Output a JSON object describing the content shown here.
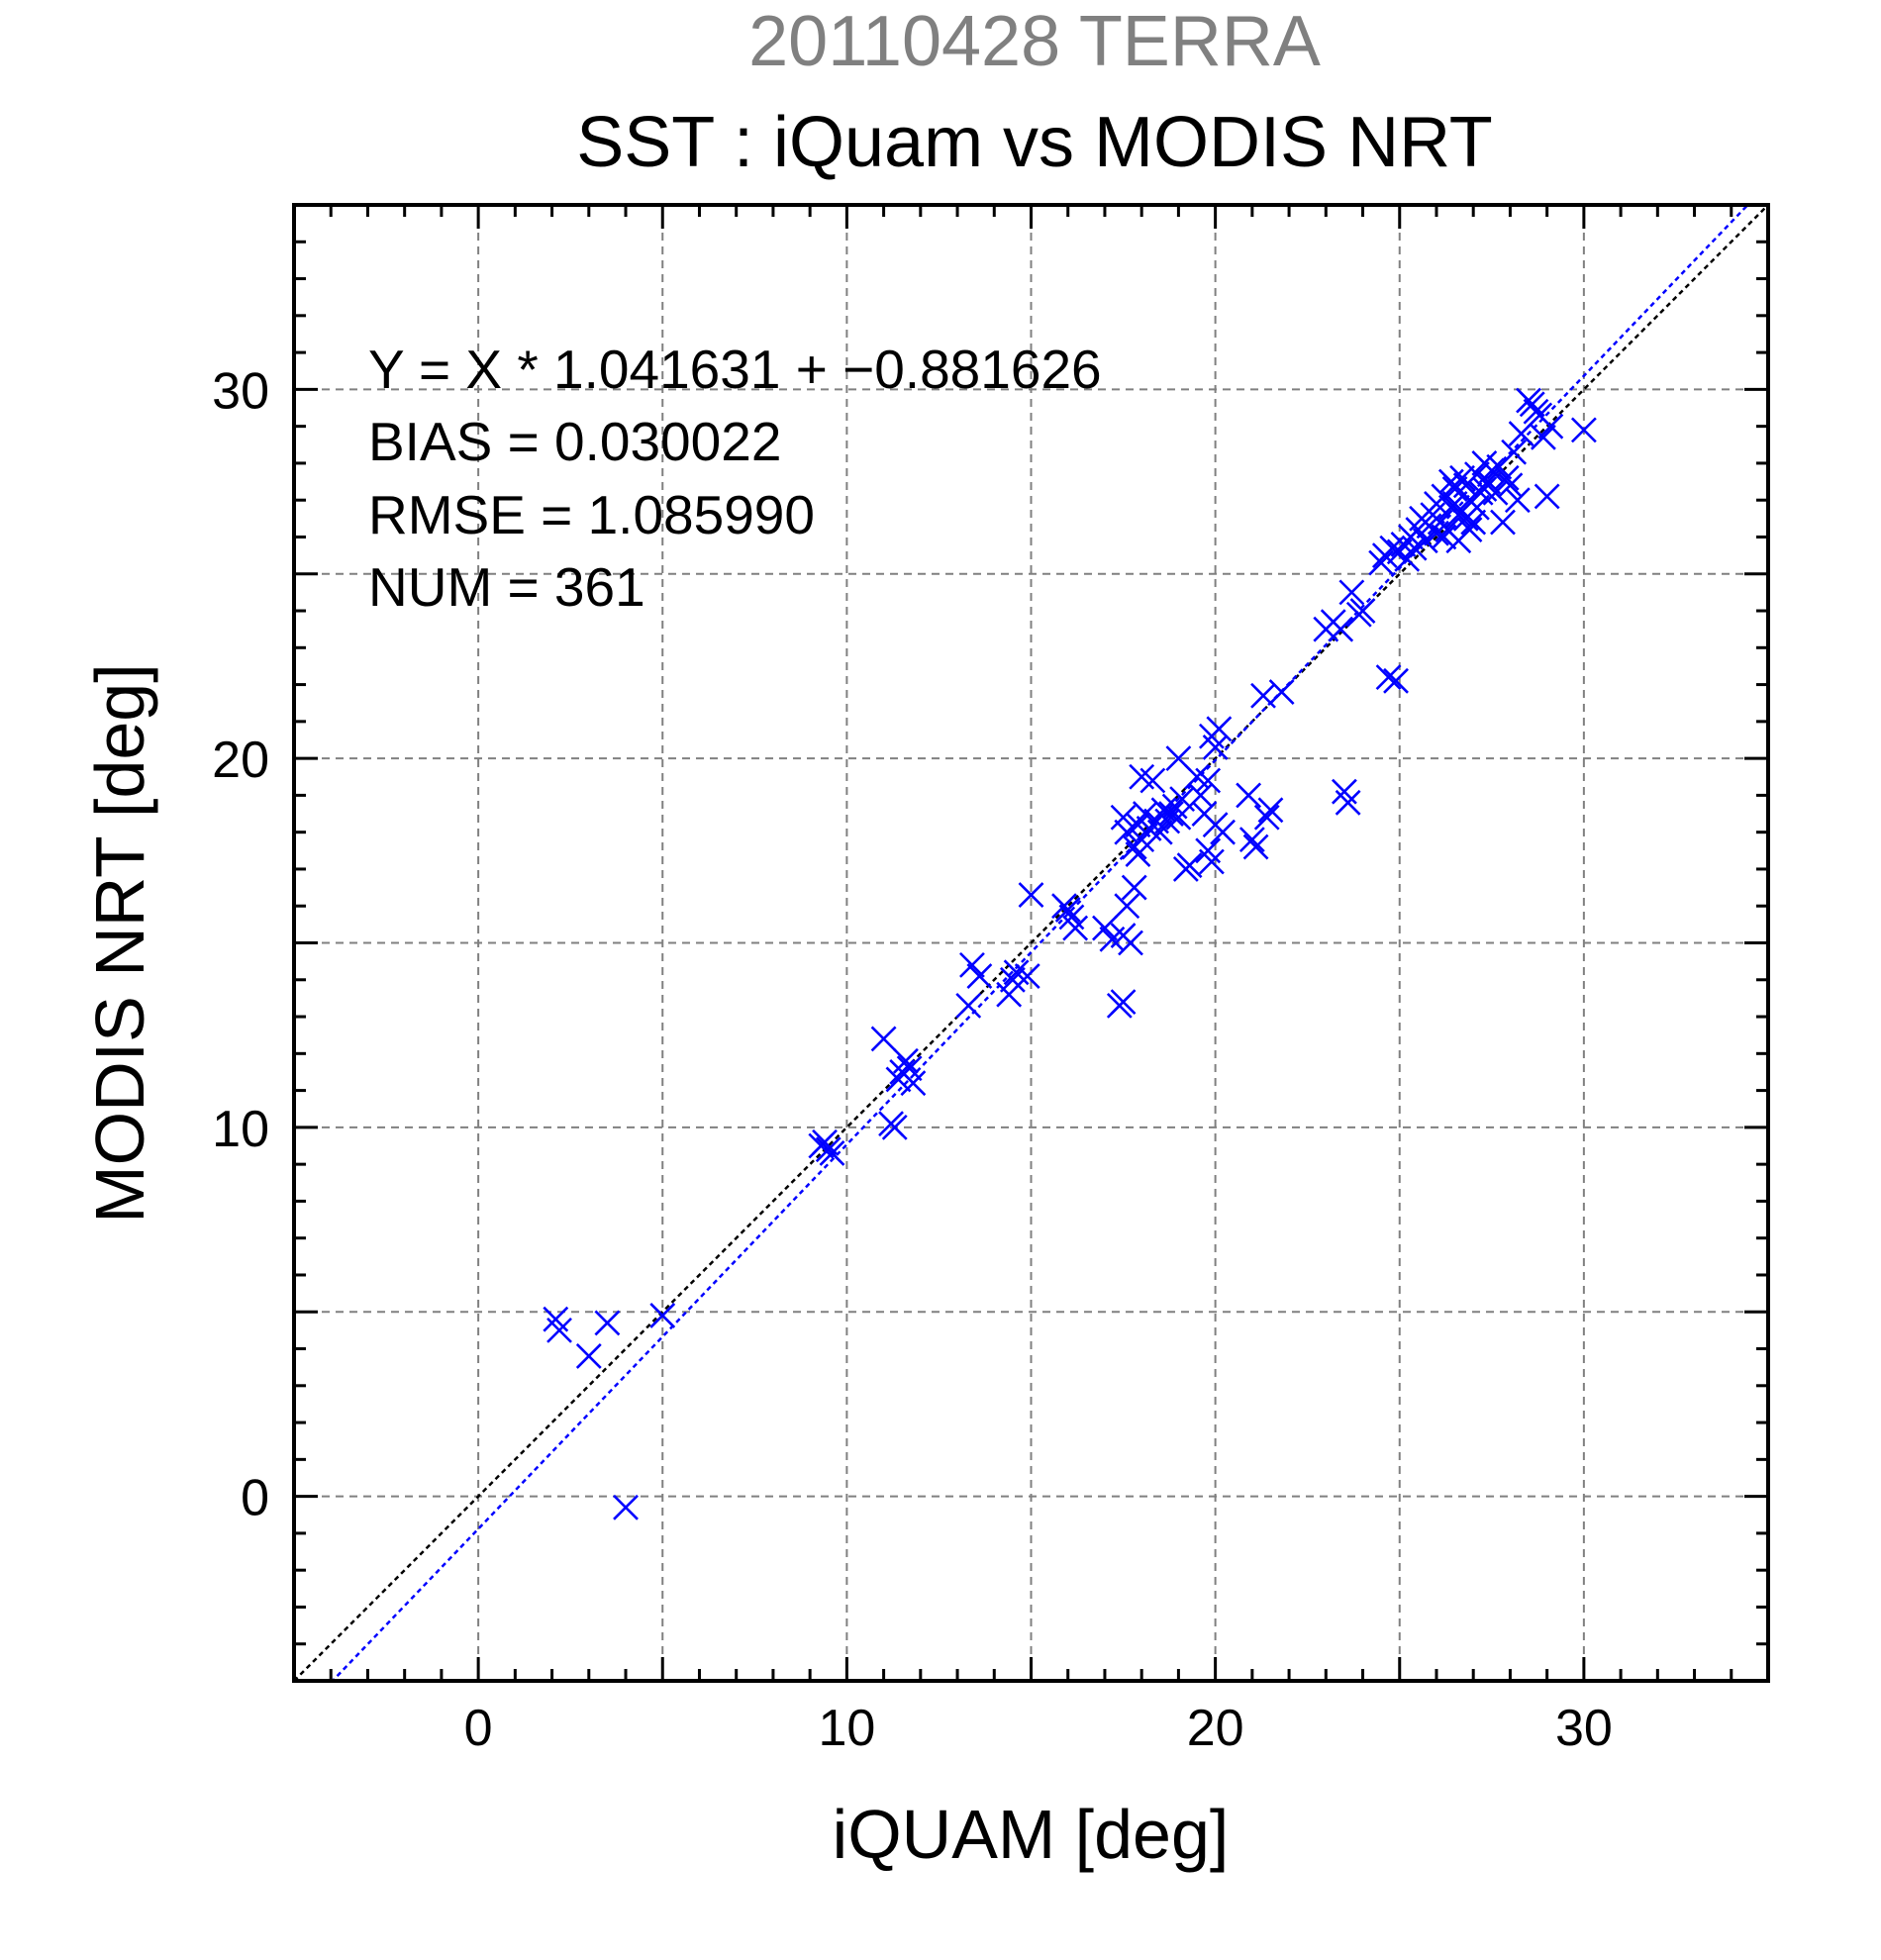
{
  "chart_data": {
    "type": "scatter",
    "suptitle": "20110428 TERRA",
    "title": "SST : iQuam vs MODIS NRT",
    "xlabel": "iQUAM [deg]",
    "ylabel": "MODIS NRT [deg]",
    "xlim": [
      -5,
      35
    ],
    "ylim": [
      -5,
      35
    ],
    "xticks": [
      0,
      10,
      20,
      30
    ],
    "yticks": [
      0,
      10,
      20,
      30
    ],
    "grid": true,
    "marker": "x",
    "colors": {
      "points": "#0000ff",
      "fit_line": "#0000ff",
      "identity_line": "#000000",
      "grid": "#808080",
      "suptitle": "#808080"
    },
    "stats": [
      "Y = X * 1.041631 + −0.881626",
      "BIAS = 0.030022",
      "RMSE = 1.085990",
      "NUM = 361"
    ],
    "fit": {
      "slope": 1.041631,
      "intercept": -0.881626
    },
    "series": [
      {
        "points": [
          [
            2.1,
            4.8
          ],
          [
            2.2,
            4.5
          ],
          [
            3.5,
            4.7
          ],
          [
            3.0,
            3.8
          ],
          [
            5.0,
            4.9
          ],
          [
            4.0,
            -0.3
          ],
          [
            9.3,
            9.5
          ],
          [
            9.5,
            9.4
          ],
          [
            9.6,
            9.3
          ],
          [
            9.4,
            9.6
          ],
          [
            11.0,
            12.4
          ],
          [
            11.2,
            10.1
          ],
          [
            11.3,
            10.0
          ],
          [
            11.5,
            11.5
          ],
          [
            11.6,
            11.8
          ],
          [
            11.8,
            11.2
          ],
          [
            11.4,
            11.3
          ],
          [
            11.7,
            11.6
          ],
          [
            13.3,
            13.3
          ],
          [
            13.4,
            14.4
          ],
          [
            13.6,
            14.1
          ],
          [
            14.4,
            13.6
          ],
          [
            14.5,
            14.0
          ],
          [
            14.6,
            14.2
          ],
          [
            14.9,
            14.1
          ],
          [
            15.0,
            16.3
          ],
          [
            16.0,
            15.9
          ],
          [
            16.1,
            15.7
          ],
          [
            16.2,
            15.4
          ],
          [
            15.9,
            16.0
          ],
          [
            17.0,
            15.4
          ],
          [
            17.2,
            15.1
          ],
          [
            17.4,
            13.3
          ],
          [
            17.5,
            13.4
          ],
          [
            17.5,
            15.2
          ],
          [
            17.7,
            15.0
          ],
          [
            17.6,
            16.0
          ],
          [
            17.8,
            16.5
          ],
          [
            17.5,
            18.4
          ],
          [
            17.6,
            18.0
          ],
          [
            17.8,
            17.6
          ],
          [
            17.9,
            18.2
          ],
          [
            18.0,
            17.8
          ],
          [
            18.1,
            18.5
          ],
          [
            18.2,
            18.1
          ],
          [
            17.9,
            17.4
          ],
          [
            18.0,
            19.5
          ],
          [
            18.3,
            19.4
          ],
          [
            18.4,
            18.3
          ],
          [
            18.5,
            18.0
          ],
          [
            18.6,
            18.6
          ],
          [
            18.7,
            18.3
          ],
          [
            18.8,
            18.5
          ],
          [
            18.9,
            18.7
          ],
          [
            19.0,
            18.4
          ],
          [
            19.1,
            18.9
          ],
          [
            19.2,
            17.0
          ],
          [
            19.3,
            17.1
          ],
          [
            19.0,
            20.0
          ],
          [
            19.5,
            19.5
          ],
          [
            19.6,
            19.0
          ],
          [
            19.8,
            17.5
          ],
          [
            19.8,
            19.4
          ],
          [
            19.9,
            20.6
          ],
          [
            20.0,
            20.3
          ],
          [
            20.1,
            20.8
          ],
          [
            20.0,
            18.2
          ],
          [
            20.2,
            18.0
          ],
          [
            19.7,
            18.5
          ],
          [
            19.9,
            17.2
          ],
          [
            20.9,
            19.0
          ],
          [
            21.0,
            17.8
          ],
          [
            21.1,
            17.6
          ],
          [
            21.5,
            18.6
          ],
          [
            21.4,
            18.4
          ],
          [
            21.3,
            21.7
          ],
          [
            21.8,
            21.8
          ],
          [
            23.0,
            23.5
          ],
          [
            23.2,
            23.7
          ],
          [
            23.4,
            23.5
          ],
          [
            23.5,
            19.1
          ],
          [
            23.6,
            18.8
          ],
          [
            23.7,
            24.5
          ],
          [
            23.9,
            23.9
          ],
          [
            24.0,
            24.0
          ],
          [
            24.7,
            22.2
          ],
          [
            24.9,
            22.1
          ],
          [
            24.5,
            25.3
          ],
          [
            24.6,
            25.5
          ],
          [
            24.8,
            25.7
          ],
          [
            25.0,
            25.6
          ],
          [
            25.1,
            25.8
          ],
          [
            25.2,
            25.4
          ],
          [
            25.3,
            26.0
          ],
          [
            25.4,
            25.7
          ],
          [
            25.5,
            26.2
          ],
          [
            25.6,
            26.5
          ],
          [
            25.7,
            25.9
          ],
          [
            25.8,
            26.3
          ],
          [
            25.9,
            26.6
          ],
          [
            26.0,
            26.1
          ],
          [
            26.0,
            26.9
          ],
          [
            26.1,
            26.4
          ],
          [
            26.2,
            27.1
          ],
          [
            26.3,
            26.2
          ],
          [
            26.4,
            26.8
          ],
          [
            26.5,
            27.3
          ],
          [
            26.6,
            26.6
          ],
          [
            26.7,
            27.6
          ],
          [
            26.8,
            26.5
          ],
          [
            26.9,
            27.0
          ],
          [
            27.0,
            26.4
          ],
          [
            27.1,
            27.7
          ],
          [
            27.2,
            27.2
          ],
          [
            27.3,
            28.0
          ],
          [
            27.4,
            27.5
          ],
          [
            27.5,
            27.8
          ],
          [
            27.6,
            27.2
          ],
          [
            27.7,
            27.9
          ],
          [
            27.8,
            26.4
          ],
          [
            27.9,
            27.6
          ],
          [
            28.0,
            27.4
          ],
          [
            28.1,
            28.3
          ],
          [
            28.2,
            27.0
          ],
          [
            28.3,
            28.8
          ],
          [
            28.5,
            29.7
          ],
          [
            28.6,
            29.6
          ],
          [
            28.7,
            29.4
          ],
          [
            28.8,
            29.3
          ],
          [
            28.9,
            28.7
          ],
          [
            29.0,
            27.1
          ],
          [
            30.0,
            28.9
          ],
          [
            29.1,
            29.0
          ],
          [
            26.2,
            26.0
          ],
          [
            26.4,
            27.5
          ],
          [
            26.6,
            25.9
          ],
          [
            26.8,
            27.4
          ],
          [
            26.9,
            26.2
          ],
          [
            27.1,
            26.8
          ],
          [
            27.3,
            27.3
          ],
          [
            26.5,
            26.9
          ]
        ]
      }
    ]
  }
}
